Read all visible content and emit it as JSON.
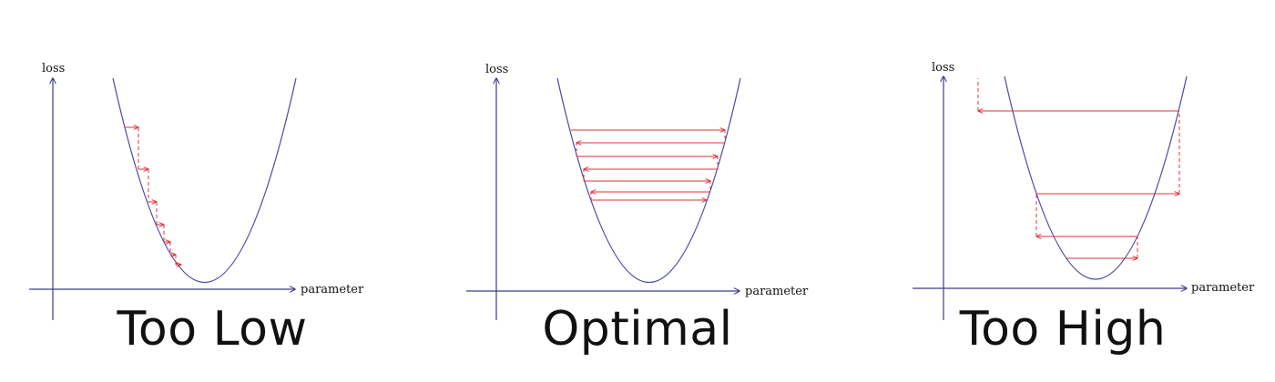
{
  "panels": [
    {
      "id": "too-low",
      "title": "Too Low",
      "axis_y_label": "loss",
      "axis_x_label": "parameter"
    },
    {
      "id": "optimal",
      "title": "Optimal",
      "axis_y_label": "loss",
      "axis_x_label": "parameter"
    },
    {
      "id": "too-high",
      "title": "Too High",
      "axis_y_label": "loss",
      "axis_x_label": "parameter"
    }
  ],
  "colors": {
    "curve": "#4a4aa0",
    "axis": "#3d3d8a",
    "step": "#e0303c",
    "text": "#111111"
  }
}
